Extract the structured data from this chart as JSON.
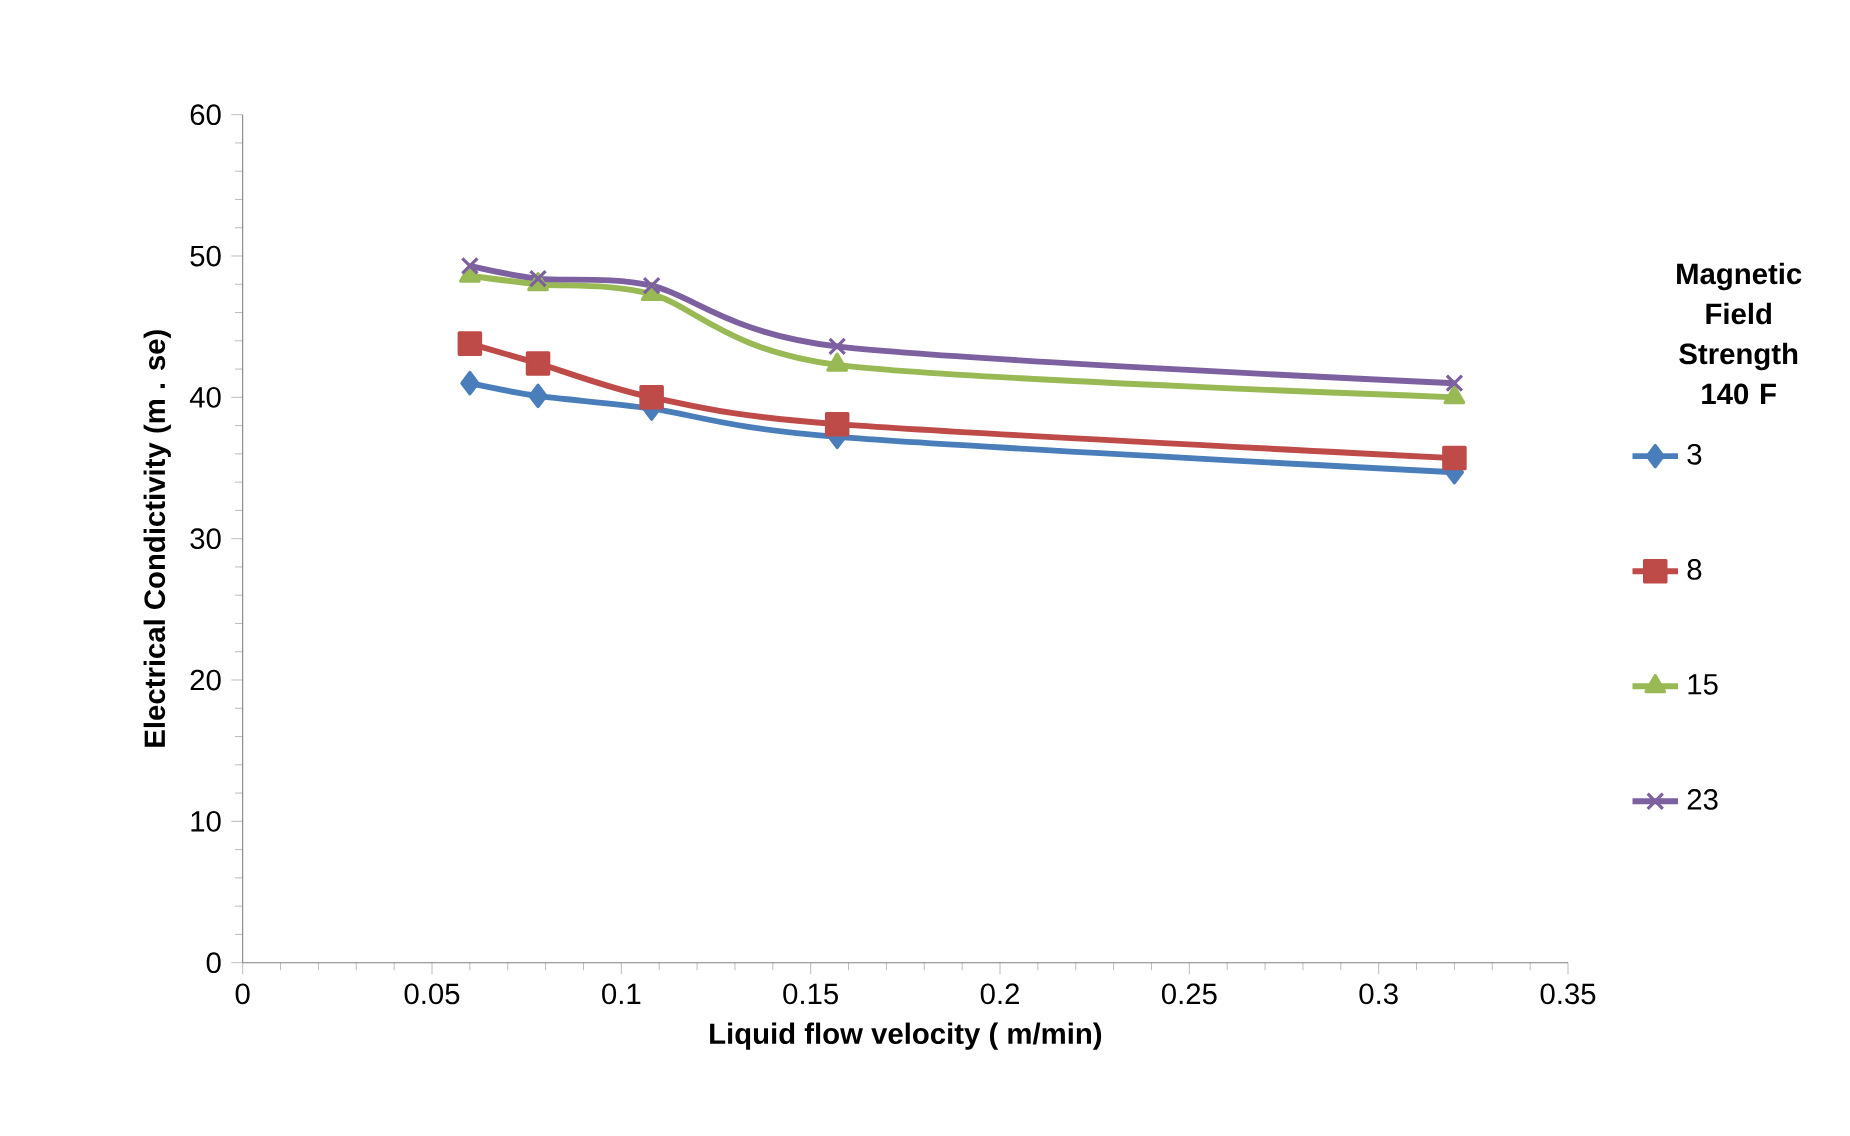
{
  "chart_data": {
    "type": "line",
    "xlabel": "Liquid flow velocity ( m/min)",
    "ylabel": "Electrical Condictivity (m . se)",
    "legend_title": "Magnetic Field Strength 140 F",
    "x": [
      0.06,
      0.078,
      0.108,
      0.157,
      0.32
    ],
    "series": [
      {
        "name": "3",
        "color": "#4a7ebb",
        "marker": "diamond",
        "values": [
          41.0,
          40.1,
          39.2,
          37.2,
          34.7
        ]
      },
      {
        "name": "8",
        "color": "#be4b48",
        "marker": "square",
        "values": [
          43.8,
          42.4,
          40.0,
          38.1,
          35.7
        ]
      },
      {
        "name": "15",
        "color": "#98b954",
        "marker": "triangle",
        "values": [
          48.6,
          48.0,
          47.3,
          42.3,
          40.0
        ]
      },
      {
        "name": "23",
        "color": "#7d60a0",
        "marker": "cross",
        "values": [
          49.3,
          48.4,
          47.9,
          43.6,
          41.0
        ]
      }
    ],
    "xlim": [
      0,
      0.35
    ],
    "xticks": [
      0,
      0.05,
      0.1,
      0.15,
      0.2,
      0.25,
      0.3,
      0.35
    ],
    "ylim": [
      0,
      60
    ],
    "yticks": [
      0,
      10,
      20,
      30,
      40,
      50,
      60
    ],
    "grid": false,
    "legend": "right"
  }
}
